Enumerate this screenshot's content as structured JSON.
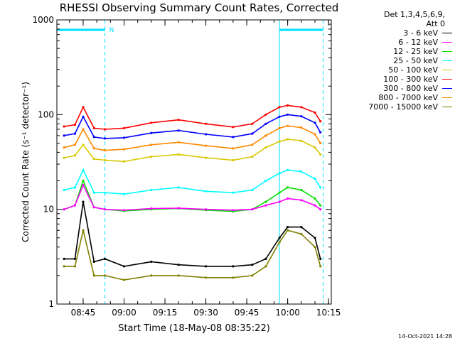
{
  "chart_data": {
    "type": "line",
    "title": "RHESSI Observing Summary Count Rates, Corrected",
    "xlabel": "Start Time (18-May-08 08:35:22)",
    "ylabel": "Corrected Count Rate (s⁻¹ detector⁻¹)",
    "yscale": "log",
    "ylim": [
      1,
      1000
    ],
    "xlim": [
      "08:35:22",
      "10:16:00"
    ],
    "x_ticks": [
      "08:45",
      "09:00",
      "09:15",
      "09:30",
      "09:45",
      "10:00",
      "10:15"
    ],
    "y_ticks": [
      "1",
      "10",
      "100",
      "1000"
    ],
    "grid": false,
    "legend_position": "right",
    "legend_header": [
      "Det 1,3,4,5,6,9,",
      "Att 0"
    ],
    "night_intervals": [
      [
        "08:35:22",
        "08:53:00"
      ],
      [
        "09:57:00",
        "10:13:00"
      ]
    ],
    "saa_label": "N",
    "time_index": [
      "08:38",
      "08:42",
      "08:45",
      "08:49",
      "08:53",
      "09:00",
      "09:10",
      "09:20",
      "09:30",
      "09:40",
      "09:47",
      "09:52",
      "09:57",
      "10:00",
      "10:05",
      "10:10",
      "10:12"
    ],
    "series": [
      {
        "name": "3 - 6 keV",
        "color": "#000000",
        "values": [
          3.0,
          3.0,
          12.0,
          2.8,
          3.0,
          2.5,
          2.8,
          2.6,
          2.5,
          2.5,
          2.6,
          3.0,
          5.0,
          6.5,
          6.5,
          5.0,
          3.0
        ]
      },
      {
        "name": "6 - 12 keV",
        "color": "#ff00ff",
        "values": [
          10.0,
          11.0,
          18.0,
          10.5,
          10.0,
          9.8,
          10.2,
          10.3,
          10.0,
          9.8,
          10.0,
          11.0,
          12.0,
          13.0,
          12.5,
          11.0,
          10.0
        ]
      },
      {
        "name": "12 - 25 keV",
        "color": "#00e000",
        "values": [
          10.0,
          11.0,
          20.0,
          10.5,
          10.0,
          9.6,
          10.0,
          10.2,
          9.8,
          9.5,
          10.0,
          12.0,
          15.0,
          17.0,
          16.0,
          13.0,
          11.0
        ]
      },
      {
        "name": "25 - 50 keV",
        "color": "#00ffff",
        "values": [
          16.0,
          17.0,
          26.0,
          15.0,
          15.0,
          14.5,
          16.0,
          17.0,
          15.5,
          15.0,
          16.0,
          20.0,
          24.0,
          26.0,
          25.0,
          21.0,
          17.0
        ]
      },
      {
        "name": "50 - 100 keV",
        "color": "#d8c800",
        "values": [
          35.0,
          37.0,
          48.0,
          34.0,
          33.0,
          32.0,
          36.0,
          38.0,
          35.0,
          33.0,
          36.0,
          45.0,
          52.0,
          55.0,
          53.0,
          45.0,
          38.0
        ]
      },
      {
        "name": "100 - 300 keV",
        "color": "#ff0000",
        "values": [
          75.0,
          78.0,
          120.0,
          72.0,
          70.0,
          72.0,
          82.0,
          88.0,
          80.0,
          74.0,
          80.0,
          100.0,
          120.0,
          125.0,
          120.0,
          105.0,
          85.0
        ]
      },
      {
        "name": "300 - 800 keV",
        "color": "#0000ff",
        "values": [
          60.0,
          63.0,
          95.0,
          58.0,
          56.0,
          57.0,
          64.0,
          68.0,
          62.0,
          58.0,
          63.0,
          80.0,
          95.0,
          100.0,
          96.0,
          82.0,
          65.0
        ]
      },
      {
        "name": "800 - 7000 keV",
        "color": "#ff8800",
        "values": [
          45.0,
          48.0,
          70.0,
          44.0,
          42.0,
          43.0,
          48.0,
          51.0,
          47.0,
          44.0,
          48.0,
          60.0,
          72.0,
          76.0,
          73.0,
          62.0,
          50.0
        ]
      },
      {
        "name": "7000 - 15000 keV",
        "color": "#808000",
        "values": [
          2.5,
          2.5,
          6.0,
          2.0,
          2.0,
          1.8,
          2.0,
          2.0,
          1.9,
          1.9,
          2.0,
          2.5,
          4.5,
          6.0,
          5.5,
          4.0,
          2.5
        ]
      }
    ]
  },
  "timestamp": "14-Oct-2021 14:28"
}
